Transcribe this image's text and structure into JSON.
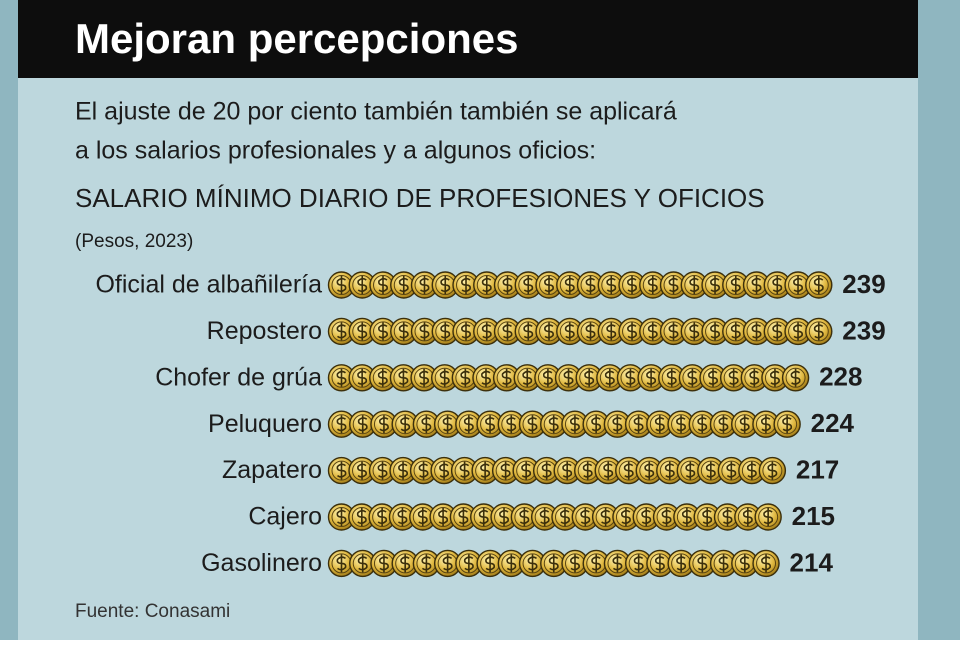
{
  "chart_data": {
    "type": "pictograph",
    "title": "Mejoran percepciones",
    "subtitle": [
      "El ajuste de 20 por ciento también también se aplicará",
      "a los salarios profesionales y a algunos oficios:"
    ],
    "chart_title": "SALARIO MÍNIMO DIARIO DE PROFESIONES Y OFICIOS",
    "unit": "(Pesos, 2023)",
    "categories": [
      "Oficial de albañilería",
      "Repostero",
      "Chofer de grúa",
      "Peluquero",
      "Zapatero",
      "Cajero",
      "Gasolinero"
    ],
    "values": [
      239,
      239,
      228,
      224,
      217,
      215,
      214
    ],
    "color": "#d9b33c",
    "source": "Fuente: Conasami"
  }
}
